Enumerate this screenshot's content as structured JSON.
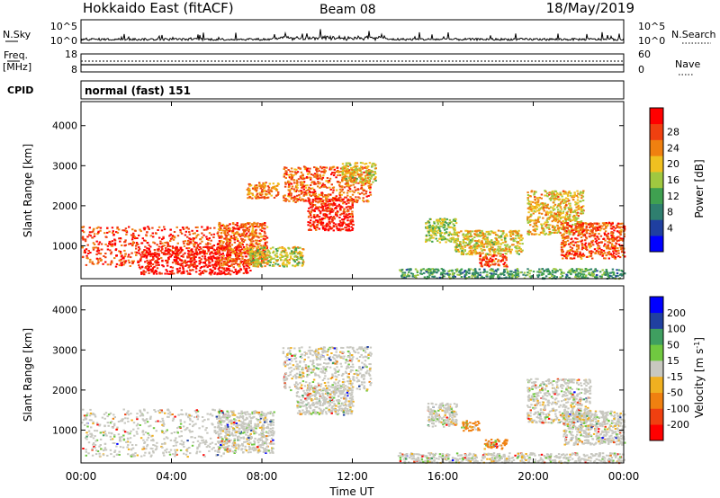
{
  "header": {
    "title": "Hokkaido East (fitACF)",
    "beam": "Beam 08",
    "date": "18/May/2019"
  },
  "strip": {
    "nsky_label": "N.Sky",
    "nsky_ticks": [
      "10^5",
      "10^0"
    ],
    "nsearch_label": "N.Search",
    "freq_label_1": "Freq.",
    "freq_label_2": "[MHz]",
    "freq_ticks": [
      "18",
      "8"
    ],
    "nave_label": "Nave",
    "nave_ticks": [
      "60",
      "0"
    ],
    "cpid_label": "CPID",
    "cpid_value": "normal (fast) 151"
  },
  "colors": {
    "power": [
      "#0000ff",
      "#1f3fa0",
      "#2f7f6f",
      "#3fa050",
      "#a0c840",
      "#f0c020",
      "#f08010",
      "#f04010",
      "#ff0000"
    ],
    "velocity": [
      "#ff0000",
      "#f04010",
      "#f08010",
      "#f0b020",
      "#c8c8c0",
      "#70c840",
      "#3f9f60",
      "#2040a0",
      "#0000ff"
    ],
    "ground_scatter": "#a8a8a0"
  },
  "chart_data": [
    {
      "type": "heatmap",
      "panel": "power",
      "xlabel": "",
      "ylabel": "Slant Range [km]",
      "xlim": [
        0,
        24
      ],
      "ylim": [
        180,
        4600
      ],
      "x_ticks": [
        0,
        4,
        8,
        12,
        16,
        20,
        24
      ],
      "y_ticks": [
        1000,
        2000,
        3000,
        4000
      ],
      "colorbar_label": "Power [dB]",
      "colorbar_ticks": [
        4,
        8,
        12,
        16,
        20,
        24,
        28
      ],
      "regions": [
        {
          "x": [
            0.0,
            6.0
          ],
          "y": [
            500,
            1500
          ],
          "level": 0.9
        },
        {
          "x": [
            2.5,
            7.5
          ],
          "y": [
            300,
            1000
          ],
          "level": 1.0
        },
        {
          "x": [
            6.0,
            8.2
          ],
          "y": [
            500,
            1600
          ],
          "level": 0.82
        },
        {
          "x": [
            7.4,
            9.8
          ],
          "y": [
            500,
            1000
          ],
          "level": 0.55
        },
        {
          "x": [
            7.3,
            8.7
          ],
          "y": [
            2200,
            2600
          ],
          "level": 0.75
        },
        {
          "x": [
            8.9,
            12.8
          ],
          "y": [
            2100,
            3000
          ],
          "level": 0.82
        },
        {
          "x": [
            10.0,
            12.0
          ],
          "y": [
            1400,
            2200
          ],
          "level": 0.95
        },
        {
          "x": [
            11.5,
            13.0
          ],
          "y": [
            2600,
            3100
          ],
          "level": 0.6
        },
        {
          "x": [
            15.2,
            16.6
          ],
          "y": [
            1100,
            1700
          ],
          "level": 0.5
        },
        {
          "x": [
            16.5,
            19.5
          ],
          "y": [
            800,
            1400
          ],
          "level": 0.6
        },
        {
          "x": [
            17.6,
            18.8
          ],
          "y": [
            500,
            800
          ],
          "level": 0.85
        },
        {
          "x": [
            19.7,
            22.2
          ],
          "y": [
            1300,
            2400
          ],
          "level": 0.65
        },
        {
          "x": [
            21.2,
            24.0
          ],
          "y": [
            700,
            1600
          ],
          "level": 0.85
        },
        {
          "x": [
            14.0,
            24.0
          ],
          "y": [
            200,
            450
          ],
          "level": 0.35
        }
      ]
    },
    {
      "type": "heatmap",
      "panel": "velocity",
      "xlabel": "Time UT",
      "ylabel": "Slant Range [km]",
      "xlim": [
        0,
        24
      ],
      "ylim": [
        180,
        4600
      ],
      "x_ticks": [
        0,
        4,
        8,
        12,
        16,
        20,
        24
      ],
      "x_ticklabels": [
        "00:00",
        "04:00",
        "08:00",
        "12:00",
        "16:00",
        "20:00",
        "00:00"
      ],
      "y_ticks": [
        1000,
        2000,
        3000,
        4000
      ],
      "colorbar_label": "Velocity [m s^-1]",
      "colorbar_ticks": [
        -200,
        -100,
        -50,
        -15,
        15,
        50,
        100,
        200
      ],
      "regions": [
        {
          "x": [
            0.0,
            6.5
          ],
          "y": [
            350,
            1550
          ],
          "level": 0.5
        },
        {
          "x": [
            6.0,
            8.5
          ],
          "y": [
            450,
            1500
          ],
          "level": 0.5
        },
        {
          "x": [
            8.9,
            12.8
          ],
          "y": [
            2000,
            3100
          ],
          "level": 0.5
        },
        {
          "x": [
            9.5,
            12.0
          ],
          "y": [
            1400,
            2100
          ],
          "level": 0.5
        },
        {
          "x": [
            15.3,
            16.6
          ],
          "y": [
            1100,
            1700
          ],
          "level": 0.5
        },
        {
          "x": [
            16.8,
            17.6
          ],
          "y": [
            1000,
            1250
          ],
          "level": 0.3
        },
        {
          "x": [
            17.8,
            18.8
          ],
          "y": [
            550,
            800
          ],
          "level": 0.25
        },
        {
          "x": [
            19.7,
            22.5
          ],
          "y": [
            1200,
            2300
          ],
          "level": 0.5
        },
        {
          "x": [
            21.3,
            24.0
          ],
          "y": [
            650,
            1500
          ],
          "level": 0.5
        },
        {
          "x": [
            14.0,
            24.0
          ],
          "y": [
            200,
            450
          ],
          "level": 0.55
        }
      ]
    }
  ]
}
